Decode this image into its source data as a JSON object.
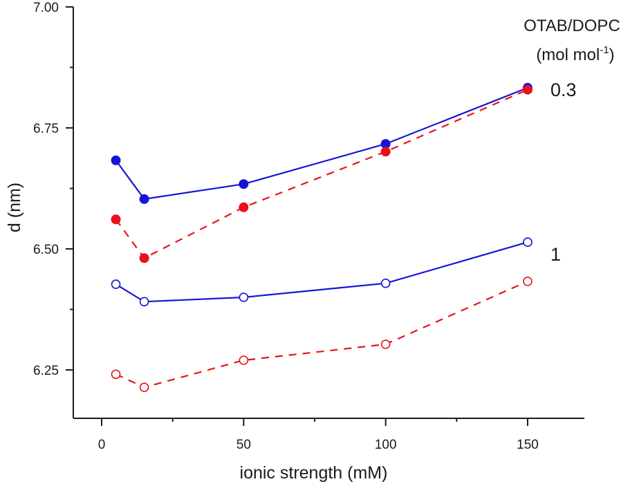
{
  "chart_data": {
    "type": "line",
    "title": "",
    "xlabel": "ionic strength (mM)",
    "ylabel": "d (nm)",
    "xlim": [
      -10,
      170
    ],
    "ylim": [
      6.1,
      7.0
    ],
    "x_ticks": [
      0,
      50,
      100,
      150
    ],
    "x_tick_labels": [
      "0",
      "50",
      "100",
      "150"
    ],
    "x_minor_ticks": [
      25,
      75,
      125
    ],
    "y_ticks": [
      6.25,
      6.5,
      6.75,
      7.0
    ],
    "y_tick_labels": [
      "6.25",
      "6.50",
      "6.75",
      "7.00"
    ],
    "y_minor_ticks": [
      6.375,
      6.625,
      6.875
    ],
    "grid": false,
    "legend": {
      "title_line1": "OTAB/DOPC",
      "title_line2_base": "(mol mol",
      "title_line2_sup": "-1",
      "title_line2_end": ")",
      "placement": "top-right"
    },
    "group_labels": [
      {
        "text": "0.3",
        "anchor_series": "blue-filled"
      },
      {
        "text": "1",
        "anchor_series": "blue-open"
      }
    ],
    "x": [
      5,
      15,
      50,
      100,
      150
    ],
    "series": [
      {
        "id": "blue-filled",
        "name": "0.3 (blue, filled)",
        "color": "#1515d6",
        "marker": "filled",
        "line": "solid",
        "values": [
          6.683,
          6.603,
          6.634,
          6.717,
          6.833
        ]
      },
      {
        "id": "red-filled",
        "name": "0.3 (red, filled)",
        "color": "#e8111b",
        "marker": "filled",
        "line": "dashed",
        "values": [
          6.561,
          6.481,
          6.586,
          6.701,
          6.829
        ]
      },
      {
        "id": "blue-open",
        "name": "1 (blue, open)",
        "color": "#1515d6",
        "marker": "open",
        "line": "solid",
        "values": [
          6.427,
          6.391,
          6.4,
          6.429,
          6.514
        ]
      },
      {
        "id": "red-open",
        "name": "1 (red, open)",
        "color": "#e8111b",
        "marker": "open",
        "line": "dashed",
        "values": [
          6.241,
          6.214,
          6.27,
          6.303,
          6.433
        ]
      }
    ]
  }
}
